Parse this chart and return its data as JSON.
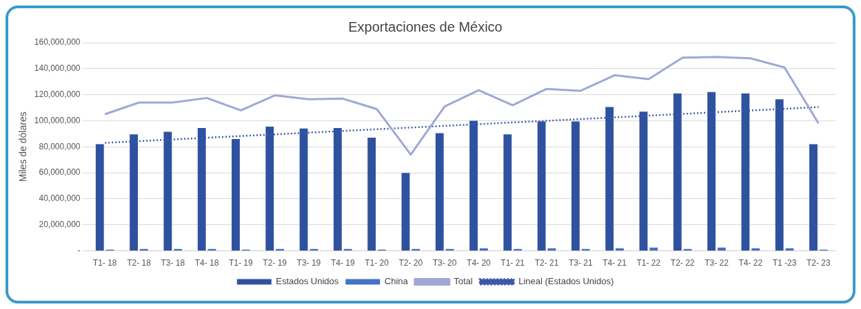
{
  "chart_data": {
    "type": "bar",
    "title": "Exportaciones de México",
    "ylabel": "Miles de dólares",
    "categories": [
      "T1- 18",
      "T2- 18",
      "T3- 18",
      "T4- 18",
      "T1- 19",
      "T2- 19",
      "T3- 19",
      "T4- 19",
      "T1- 20",
      "T2- 20",
      "T3- 20",
      "T4- 20",
      "T1- 21",
      "T2- 21",
      "T3- 21",
      "T4- 21",
      "T1- 22",
      "T2- 22",
      "T3- 22",
      "T4- 22",
      "T1 -23",
      "T2- 23"
    ],
    "series": [
      {
        "name": "Estados Unidos",
        "color": "#2f52a0",
        "values": [
          82000000,
          89500000,
          91500000,
          94500000,
          86000000,
          95500000,
          94000000,
          94500000,
          87000000,
          60000000,
          90500000,
          100000000,
          89500000,
          99500000,
          99500000,
          110500000,
          107000000,
          121000000,
          122000000,
          121000000,
          116500000,
          82000000
        ]
      },
      {
        "name": "China",
        "color": "#4472c4",
        "values": [
          1000000,
          1500000,
          1500000,
          1500000,
          1000000,
          1500000,
          1500000,
          1500000,
          1000000,
          1500000,
          1500000,
          2000000,
          1500000,
          2000000,
          1500000,
          2000000,
          2500000,
          1500000,
          2500000,
          2000000,
          2000000,
          1000000
        ]
      },
      {
        "name": "Total",
        "type": "line",
        "color": "#9fa8d6",
        "marker": "none",
        "line_style": "solid",
        "values": [
          105000000,
          114000000,
          114000000,
          117500000,
          108000000,
          119500000,
          116500000,
          117000000,
          109000000,
          74000000,
          111000000,
          123500000,
          112000000,
          124500000,
          123000000,
          135000000,
          132000000,
          148500000,
          149000000,
          148000000,
          141000000,
          98000000
        ]
      },
      {
        "name": "Lineal (Estados Unidos)",
        "type": "line",
        "color": "#3a5aa8",
        "marker": "none",
        "line_style": "dotted",
        "x": [
          "T1- 18",
          "T2- 23"
        ],
        "values": [
          83000000,
          110500000
        ]
      }
    ],
    "ylim": [
      0,
      160000000
    ],
    "yticks": [
      {
        "value": 0,
        "label": "-"
      },
      {
        "value": 20000000,
        "label": "20,000,000"
      },
      {
        "value": 40000000,
        "label": "40,000,000"
      },
      {
        "value": 60000000,
        "label": "60,000,000"
      },
      {
        "value": 80000000,
        "label": "80,000,000"
      },
      {
        "value": 100000000,
        "label": "100,000,000"
      },
      {
        "value": 120000000,
        "label": "120,000,000"
      },
      {
        "value": 140000000,
        "label": "140,000,000"
      },
      {
        "value": 160000000,
        "label": "160,000,000"
      }
    ],
    "grid": "y",
    "legend": "bottom"
  }
}
